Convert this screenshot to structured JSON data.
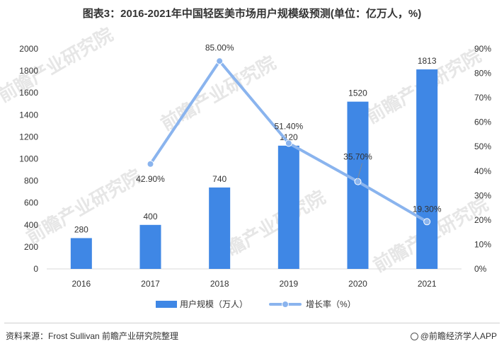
{
  "title": "图表3：2016-2021年中国轻医美市场用户规模级预测(单位：亿万人，%)",
  "source": "资料来源：Frost Sullivan 前瞻产业研究院整理",
  "brand": "@前瞻经济学人APP",
  "watermark": "前瞻产业研究院",
  "colors": {
    "bar": "#3f87e5",
    "line": "#8ab4ee",
    "axis": "#d9d9d9"
  },
  "chart_data": {
    "type": "bar",
    "categories": [
      "2016",
      "2017",
      "2018",
      "2019",
      "2020",
      "2021"
    ],
    "series": [
      {
        "name": "用户规模（万人）",
        "type": "bar",
        "axis": "left",
        "values": [
          280,
          400,
          740,
          1120,
          1520,
          1813
        ],
        "labels": [
          "280",
          "400",
          "740",
          "1120",
          "1520",
          "1813"
        ]
      },
      {
        "name": "增长率（%）",
        "type": "line",
        "axis": "right",
        "values": [
          null,
          42.9,
          85.0,
          51.4,
          35.7,
          19.3
        ],
        "labels": [
          "",
          "42.90%",
          "85.00%",
          "51.40%",
          "35.70%",
          "19.30%"
        ]
      }
    ],
    "ylim": [
      0,
      2000
    ],
    "yticks": [
      "0",
      "200",
      "400",
      "600",
      "800",
      "1000",
      "1200",
      "1400",
      "1600",
      "1800",
      "2000"
    ],
    "y2lim": [
      0,
      90
    ],
    "y2ticks": [
      "0%",
      "10%",
      "20%",
      "30%",
      "40%",
      "50%",
      "60%",
      "70%",
      "80%",
      "90%"
    ],
    "grid": false,
    "legend": "bottom-center"
  }
}
